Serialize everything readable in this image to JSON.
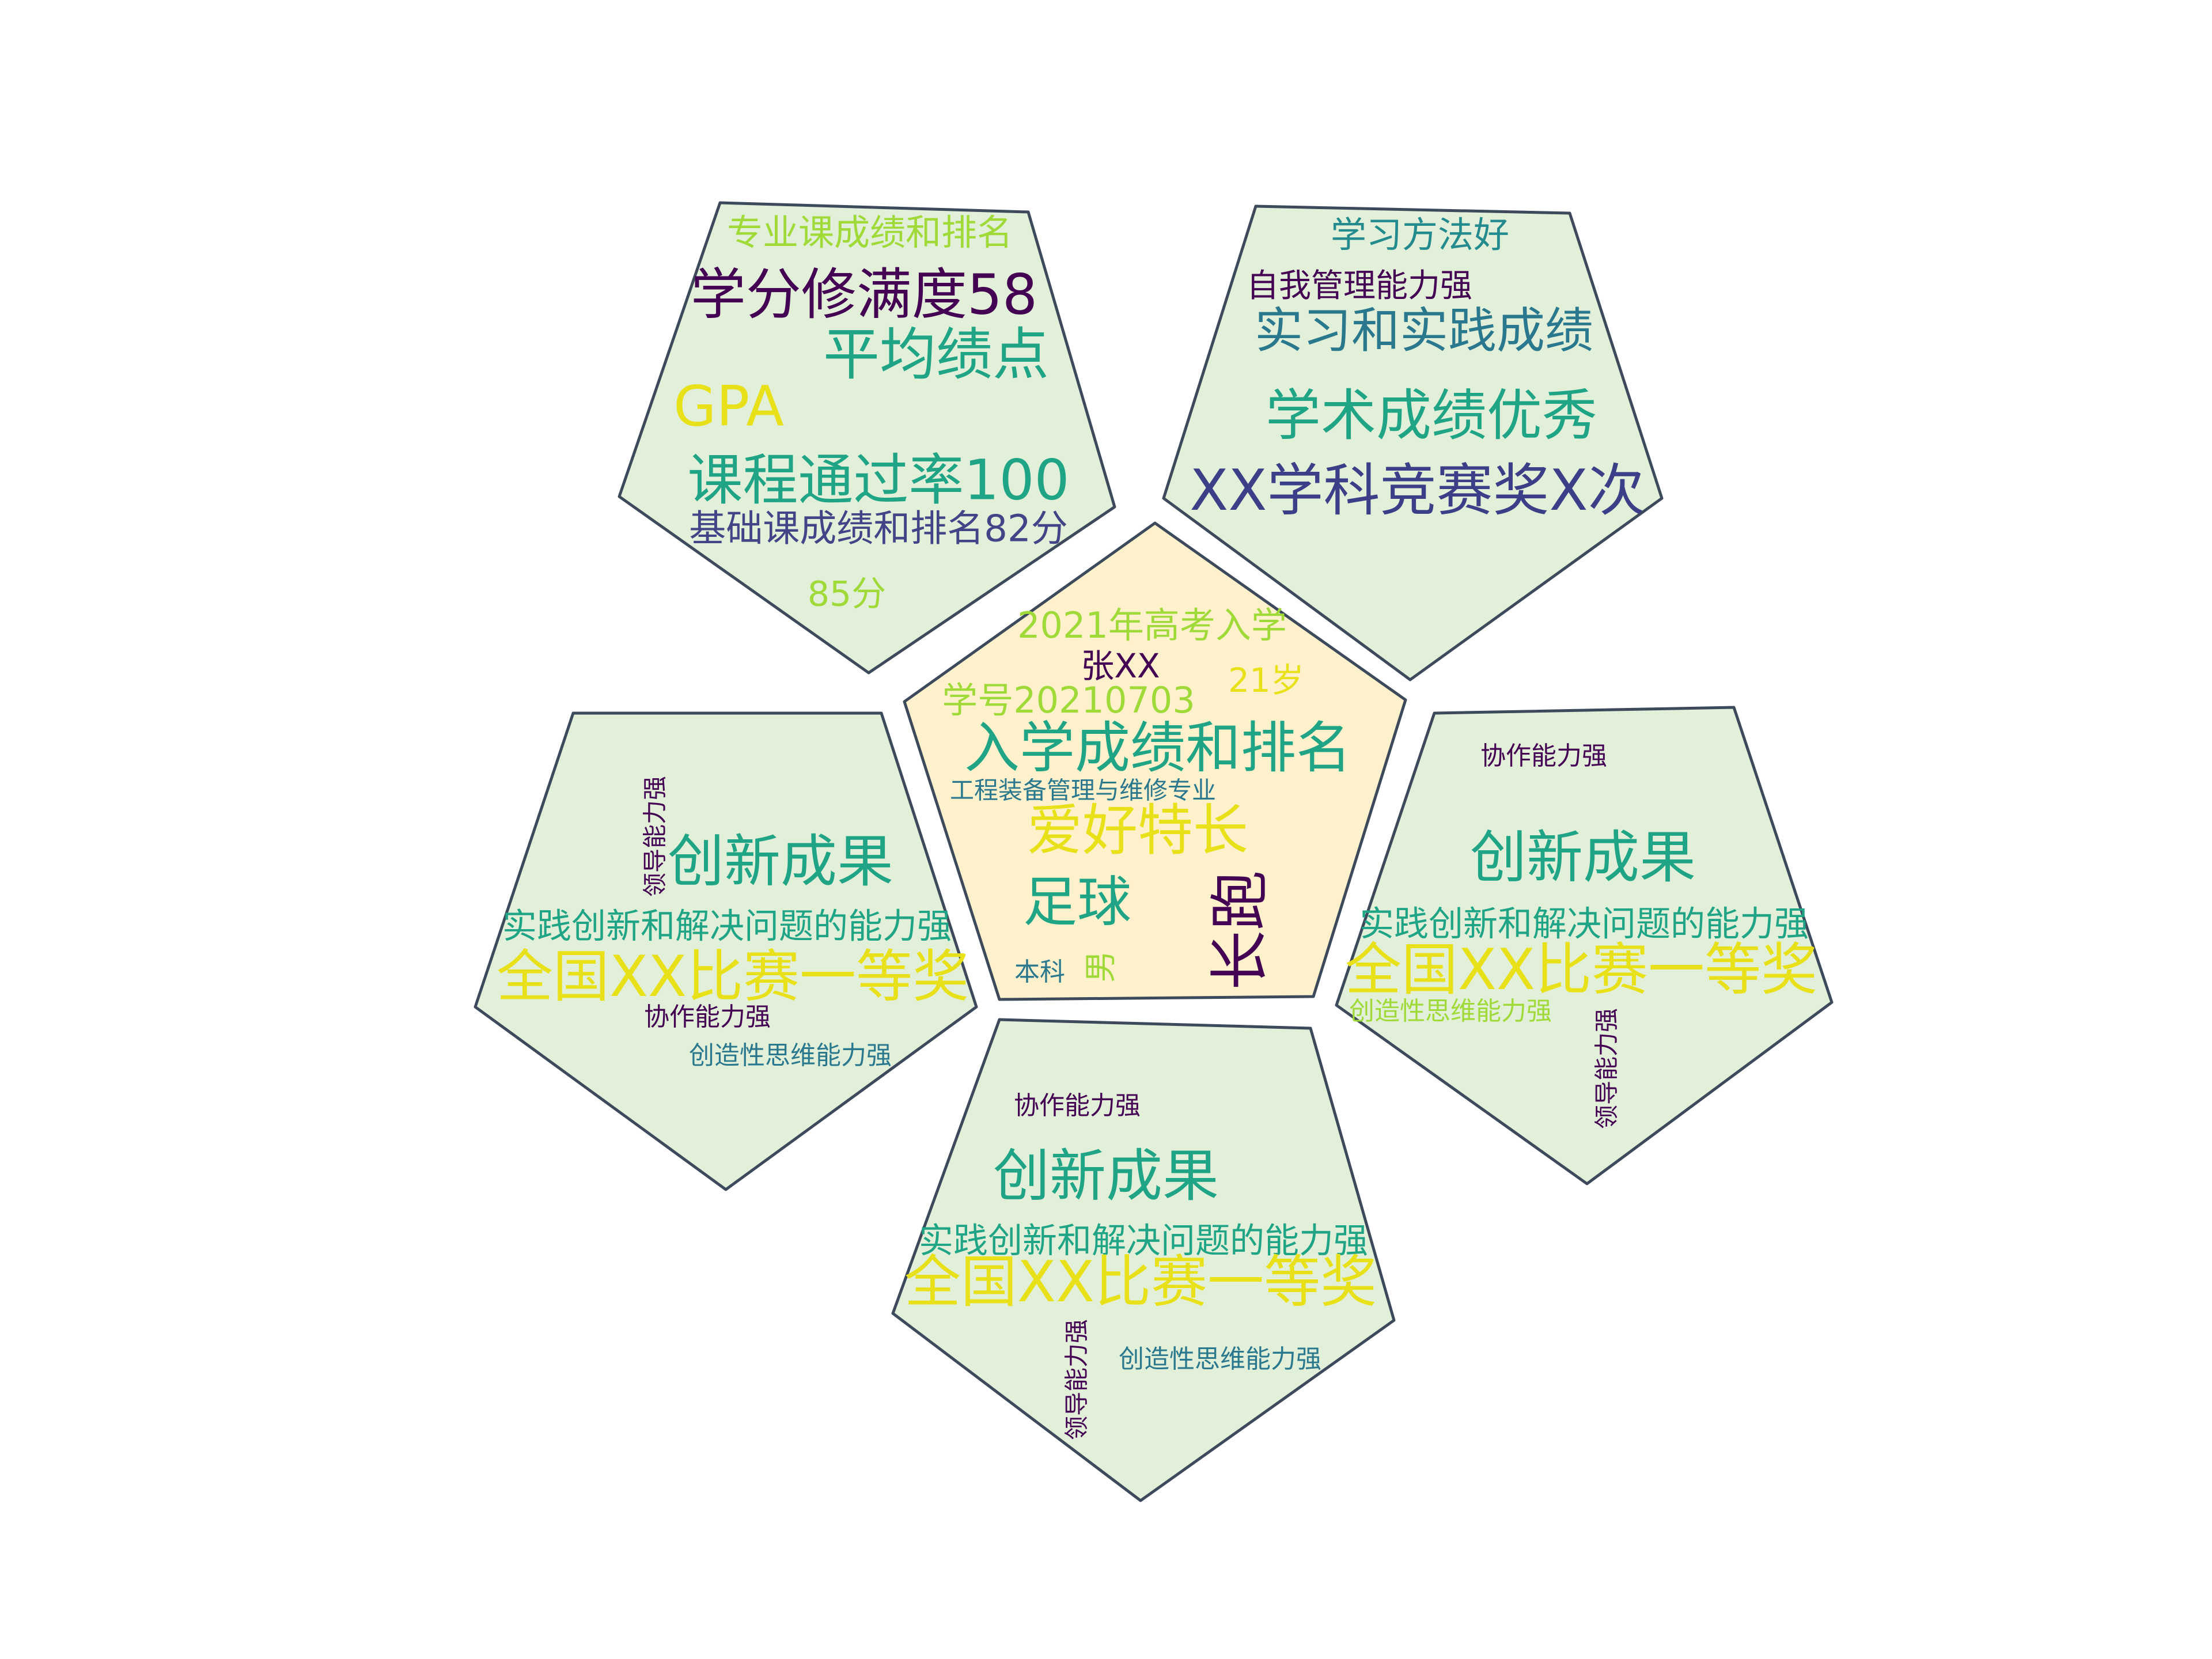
{
  "colors": {
    "petal_fill": "#e2efd9",
    "center_fill": "#fff1cc",
    "outline": "#3d4a5c",
    "palette": {
      "dark_purple": "#440154",
      "indigo": "#3b3f87",
      "slate_blue": "#414487",
      "teal": "#2a788e",
      "dark_teal": "#238a8d",
      "green": "#20a486",
      "light_green": "#5ec962",
      "lime": "#a0da39",
      "yellow": "#e8e11a"
    }
  },
  "center": {
    "words": [
      {
        "text": "2021年高考入学",
        "color": "lime"
      },
      {
        "text": "张XX",
        "color": "dark_purple"
      },
      {
        "text": "21岁",
        "color": "yellow"
      },
      {
        "text": "学号20210703",
        "color": "lime"
      },
      {
        "text": "入学成绩和排名",
        "color": "green"
      },
      {
        "text": "工程装备管理与维修专业",
        "color": "teal"
      },
      {
        "text": "爱好特长",
        "color": "yellow"
      },
      {
        "text": "足球",
        "color": "green"
      },
      {
        "text": "长跑",
        "color": "dark_purple"
      },
      {
        "text": "本科",
        "color": "teal"
      },
      {
        "text": "男",
        "color": "lime"
      }
    ]
  },
  "petal_top_left": {
    "words": [
      {
        "text": "专业课成绩和排名",
        "color": "lime"
      },
      {
        "text": "学分修满度58",
        "color": "dark_purple"
      },
      {
        "text": "平均绩点",
        "color": "green"
      },
      {
        "text": "GPA",
        "color": "yellow"
      },
      {
        "text": "课程通过率100",
        "color": "green"
      },
      {
        "text": "基础课成绩和排名82分",
        "color": "slate_blue"
      },
      {
        "text": "85分",
        "color": "lime"
      }
    ]
  },
  "petal_top_right": {
    "words": [
      {
        "text": "学习方法好",
        "color": "dark_teal"
      },
      {
        "text": "自我管理能力强",
        "color": "dark_purple"
      },
      {
        "text": "实习和实践成绩",
        "color": "teal"
      },
      {
        "text": "学术成绩优秀",
        "color": "green"
      },
      {
        "text": "XX学科竞赛奖X次",
        "color": "indigo"
      }
    ]
  },
  "petal_left": {
    "words": [
      {
        "text": "领导能力强",
        "color": "dark_purple"
      },
      {
        "text": "创新成果",
        "color": "green"
      },
      {
        "text": "实践创新和解决问题的能力强",
        "color": "green"
      },
      {
        "text": "全国XX比赛一等奖",
        "color": "yellow"
      },
      {
        "text": "协作能力强",
        "color": "dark_purple"
      },
      {
        "text": "创造性思维能力强",
        "color": "teal"
      }
    ]
  },
  "petal_right": {
    "words": [
      {
        "text": "协作能力强",
        "color": "dark_purple"
      },
      {
        "text": "创新成果",
        "color": "green"
      },
      {
        "text": "实践创新和解决问题的能力强",
        "color": "green"
      },
      {
        "text": "全国XX比赛一等奖",
        "color": "yellow"
      },
      {
        "text": "创造性思维能力强",
        "color": "lime"
      },
      {
        "text": "领导能力强",
        "color": "dark_purple"
      }
    ]
  },
  "petal_bottom": {
    "words": [
      {
        "text": "协作能力强",
        "color": "dark_purple"
      },
      {
        "text": "创新成果",
        "color": "green"
      },
      {
        "text": "实践创新和解决问题的能力强",
        "color": "green"
      },
      {
        "text": "全国XX比赛一等奖",
        "color": "yellow"
      },
      {
        "text": "领导能力强",
        "color": "dark_purple"
      },
      {
        "text": "创造性思维能力强",
        "color": "teal"
      }
    ]
  }
}
